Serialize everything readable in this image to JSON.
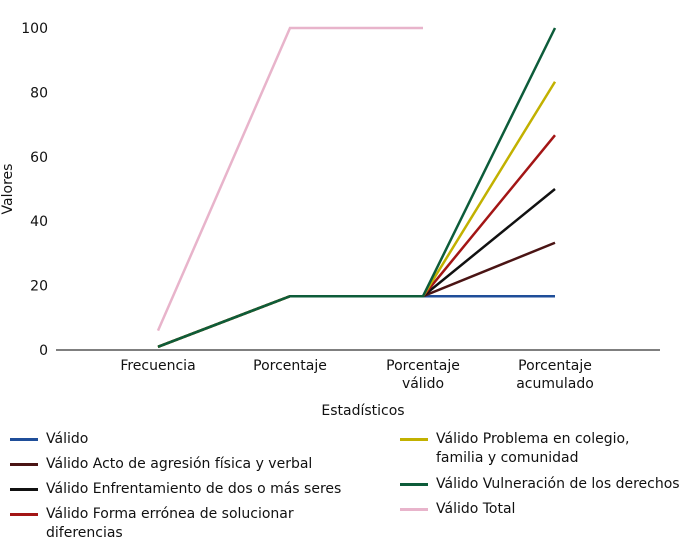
{
  "chart_data": {
    "type": "line",
    "title": "",
    "xlabel": "Estadísticos",
    "ylabel": "Valores",
    "ylim": [
      0,
      100
    ],
    "yticks": [
      0,
      20,
      40,
      60,
      80,
      100
    ],
    "categories": [
      [
        "Frecuencia"
      ],
      [
        "Porcentaje"
      ],
      [
        "Porcentaje",
        "válido"
      ],
      [
        "Porcentaje",
        "acumulado"
      ]
    ],
    "grid": false,
    "legend_placement": "bottom",
    "series": [
      {
        "name": "Válido",
        "color": "#1f4e99",
        "values": [
          1,
          16.7,
          16.7,
          16.7
        ]
      },
      {
        "name": "Válido Acto de agresión física y verbal",
        "color": "#4a1414",
        "values": [
          1,
          16.7,
          16.7,
          33.3
        ]
      },
      {
        "name": "Válido Enfrentamiento de dos o más seres",
        "color": "#111111",
        "values": [
          1,
          16.7,
          16.7,
          50
        ]
      },
      {
        "name": "Válido Forma errónea de solucionar diferencias",
        "color": "#a31515",
        "values": [
          1,
          16.7,
          16.7,
          66.7
        ]
      },
      {
        "name": "Válido Problema en colegio, familia y comunidad",
        "color": "#c2b100",
        "values": [
          1,
          16.7,
          16.7,
          83.3
        ]
      },
      {
        "name": "Válido Vulneración de los derechos",
        "color": "#0d5c3a",
        "values": [
          1,
          16.7,
          16.7,
          100
        ]
      },
      {
        "name": "Válido Total",
        "color": "#e8b4cb",
        "values": [
          6,
          100,
          100,
          null
        ]
      }
    ]
  },
  "legend_lines": [
    [
      "Válido"
    ],
    [
      "Válido Acto de agresión física y verbal"
    ],
    [
      "Válido Enfrentamiento de dos o más seres"
    ],
    [
      "Válido Forma errónea de solucionar",
      "diferencias"
    ],
    [
      "Válido Problema en colegio,",
      "familia y comunidad"
    ],
    [
      "Válido Vulneración de los derechos"
    ],
    [
      "Válido Total"
    ]
  ]
}
